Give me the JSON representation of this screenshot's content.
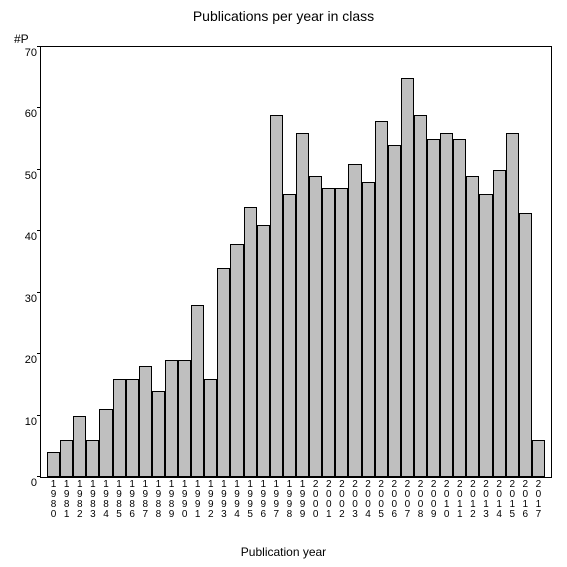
{
  "chart": {
    "type": "bar",
    "title": "Publications per year in class",
    "title_fontsize": 14,
    "y_axis_label": "#P",
    "x_axis_label": "Publication year",
    "label_fontsize": 12,
    "background_color": "#ffffff",
    "bar_fill_color": "#bfbfbf",
    "bar_border_color": "#000000",
    "axis_color": "#000000",
    "text_color": "#000000",
    "ylim": [
      0,
      70
    ],
    "ytick_step": 10,
    "yticks": [
      0,
      10,
      20,
      30,
      40,
      50,
      60,
      70
    ],
    "categories": [
      "1980",
      "1981",
      "1982",
      "1983",
      "1984",
      "1985",
      "1986",
      "1987",
      "1988",
      "1989",
      "1990",
      "1991",
      "1992",
      "1993",
      "1994",
      "1995",
      "1996",
      "1997",
      "1998",
      "1999",
      "2000",
      "2001",
      "2002",
      "2003",
      "2004",
      "2005",
      "2006",
      "2007",
      "2008",
      "2009",
      "2010",
      "2011",
      "2012",
      "2013",
      "2014",
      "2015",
      "2016",
      "2017"
    ],
    "values": [
      4,
      6,
      10,
      6,
      11,
      16,
      16,
      18,
      14,
      19,
      19,
      28,
      16,
      34,
      38,
      44,
      41,
      59,
      46,
      56,
      49,
      47,
      47,
      51,
      48,
      58,
      54,
      65,
      59,
      55,
      56,
      55,
      49,
      46,
      50,
      56,
      43,
      6
    ],
    "bar_width_ratio": 1.0
  }
}
